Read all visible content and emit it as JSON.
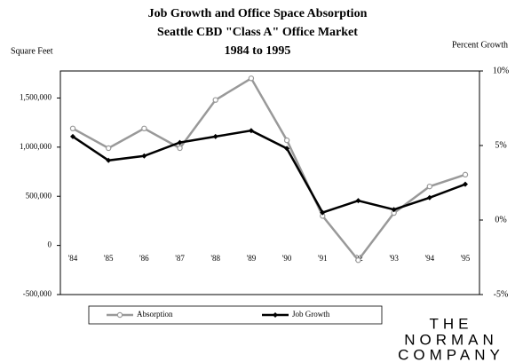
{
  "chart_data": {
    "type": "line",
    "title": "Job Growth and Office Space Absorption",
    "subtitle": "Seattle CBD \"Class A\" Office Market",
    "period": "1984 to 1995",
    "y_label": "Square Feet",
    "y2_label": "Percent Growth",
    "categories": [
      "'84",
      "'85",
      "'86",
      "'87",
      "'88",
      "'89",
      "'90",
      "'91",
      "'92",
      "'93",
      "'94",
      "'95"
    ],
    "series": [
      {
        "name": "Absorption",
        "color": "#999999",
        "marker": "circle",
        "values": [
          1190000,
          990000,
          1190000,
          990000,
          1480000,
          1700000,
          1070000,
          300000,
          -150000,
          330000,
          600000,
          720000
        ]
      },
      {
        "name": "Job Growth",
        "color": "#000000",
        "marker": "diamond",
        "axis": "y2",
        "values": [
          5.6,
          4.0,
          4.3,
          5.2,
          5.6,
          6.0,
          4.8,
          0.5,
          1.3,
          0.7,
          1.5,
          2.4
        ]
      }
    ],
    "ylim": [
      -500000,
      1775000
    ],
    "yticks": [
      {
        "value": -500000,
        "label": "-500,000"
      },
      0,
      {
        "value": 500000,
        "label": "500,000"
      },
      {
        "value": 1000000,
        "label": "1,000,000"
      },
      {
        "value": 1500000,
        "label": "1,500,000"
      }
    ],
    "y2lim": [
      -5,
      10
    ],
    "y2ticks": [
      {
        "value": -5,
        "label": "-5%"
      },
      {
        "value": 0,
        "label": "0%"
      },
      {
        "value": 5,
        "label": "5%"
      },
      {
        "value": 10,
        "label": "10%"
      }
    ],
    "legend": "bottom",
    "logo": [
      "THE",
      "NORMAN",
      "COMPANY"
    ]
  }
}
